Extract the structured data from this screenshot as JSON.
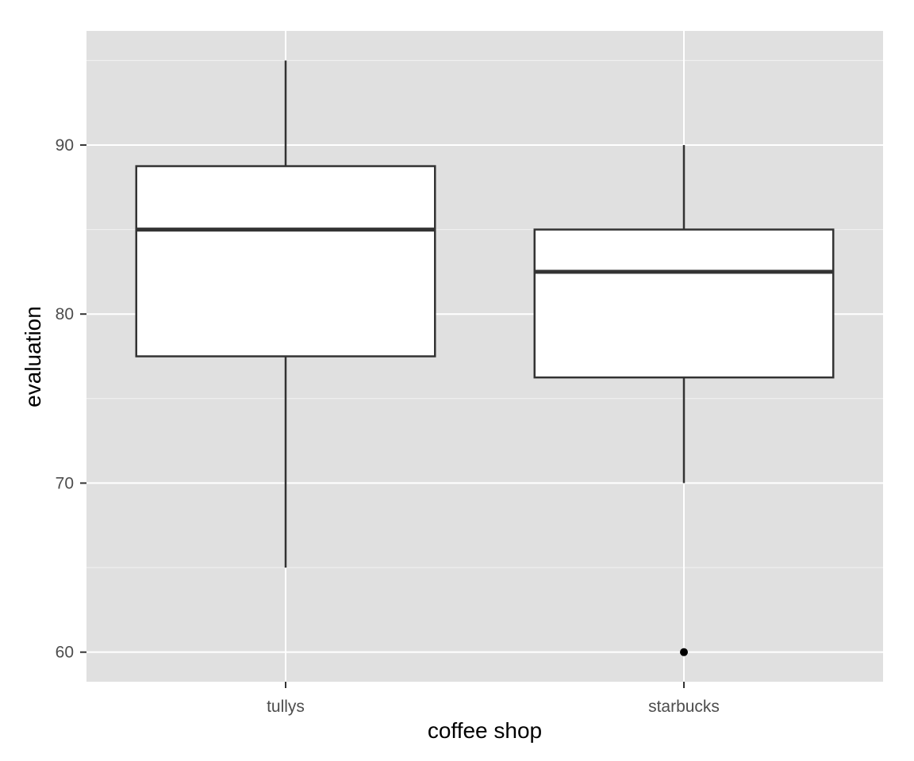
{
  "chart_data": {
    "type": "boxplot",
    "title": "",
    "xlabel": "coffee shop",
    "ylabel": "evaluation",
    "categories": [
      "tullys",
      "starbucks"
    ],
    "boxes": [
      {
        "category": "tullys",
        "whisker_low": 65,
        "q1": 77.5,
        "median": 85,
        "q3": 88.75,
        "whisker_high": 95,
        "outliers": []
      },
      {
        "category": "starbucks",
        "whisker_low": 70,
        "q1": 76.25,
        "median": 82.5,
        "q3": 85,
        "whisker_high": 90,
        "outliers": [
          60
        ]
      }
    ],
    "ylim": [
      58.25,
      96.75
    ],
    "y_ticks": [
      60,
      70,
      80,
      90
    ],
    "y_minor_ticks": [
      65,
      75,
      85,
      95
    ],
    "grid": true,
    "colors": {
      "panel": "#e0e0e0",
      "grid": "#ffffff",
      "box_fill": "#ffffff",
      "box_stroke": "#333333",
      "median": "#333333",
      "outlier": "#000000"
    }
  }
}
